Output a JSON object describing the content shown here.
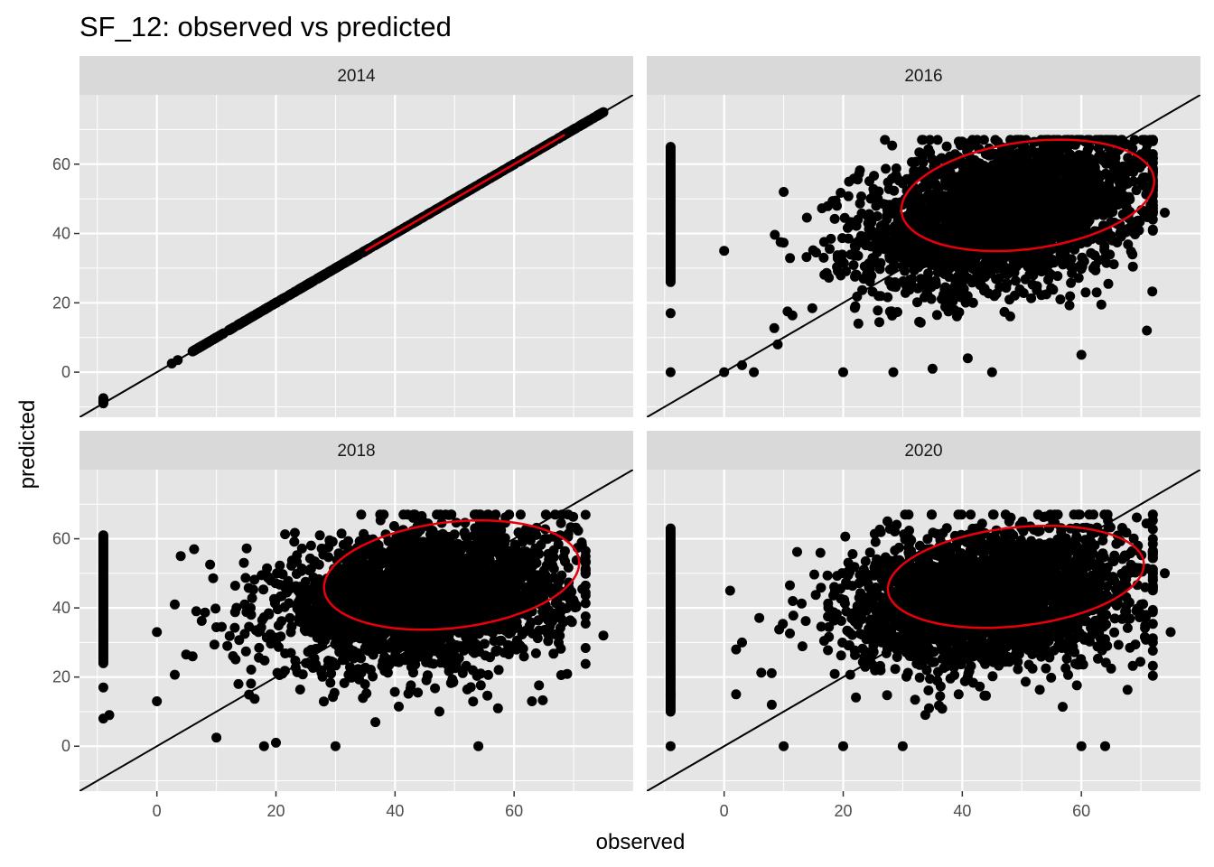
{
  "chart_data": {
    "type": "scatter",
    "title": "SF_12: observed vs predicted",
    "xlabel": "observed",
    "ylabel": "predicted",
    "xlim": [
      -13,
      80
    ],
    "ylim": [
      -13,
      80
    ],
    "x_ticks": [
      0,
      20,
      40,
      60
    ],
    "y_ticks": [
      0,
      20,
      40,
      60
    ],
    "x_tick_labels": [
      "0",
      "20",
      "40",
      "60"
    ],
    "y_tick_labels": [
      "0",
      "20",
      "40",
      "60"
    ],
    "grid": true,
    "reference_line": "identity (y = x)",
    "colors": {
      "panel_background": "#e5e5e5",
      "strip_background": "#d9d9d9",
      "grid": "#ffffff",
      "points": "#000000",
      "ellipse": "#e8000b",
      "reference_line": "#000000"
    },
    "facets": [
      {
        "label": "2014",
        "cloud": {
          "mx": 42,
          "my": 42,
          "sx": 14,
          "sy": 14,
          "rho": 1.0,
          "n": 700
        },
        "missing_column": {
          "x": -9,
          "ymin": -9,
          "ymax": -7.5
        },
        "ellipse": {
          "type": "segment",
          "x1": 35,
          "y1": 35,
          "x2": 68.5,
          "y2": 68.5
        },
        "extremes": [
          [
            2.5,
            2.5
          ],
          [
            3.5,
            3.5
          ],
          [
            6,
            6
          ],
          [
            74,
            74
          ],
          [
            75,
            75
          ]
        ]
      },
      {
        "label": "2016",
        "cloud": {
          "mx": 47,
          "my": 46,
          "sx": 12,
          "sy": 11,
          "rho": 0.32,
          "n": 2500
        },
        "missing_column": {
          "x": -9,
          "ymin": 26,
          "ymax": 65
        },
        "ellipse": {
          "type": "ellipse",
          "cx": 51,
          "cy": 51,
          "rx": 22,
          "ry": 15,
          "angle_deg": 21
        },
        "extremes": [
          [
            -9,
            17
          ],
          [
            -9,
            0
          ],
          [
            0,
            0
          ],
          [
            0,
            35
          ],
          [
            3,
            2
          ],
          [
            5,
            0
          ],
          [
            9,
            8
          ],
          [
            10,
            52
          ],
          [
            20,
            0
          ],
          [
            27,
            67
          ],
          [
            71,
            12
          ],
          [
            74,
            46
          ],
          [
            60,
            5
          ],
          [
            35,
            1
          ],
          [
            45,
            0
          ]
        ]
      },
      {
        "label": "2018",
        "cloud": {
          "mx": 45,
          "my": 43,
          "sx": 12,
          "sy": 10,
          "rho": 0.22,
          "n": 2500
        },
        "missing_column": {
          "x": -9,
          "ymin": 24,
          "ymax": 61
        },
        "ellipse": {
          "type": "ellipse",
          "cx": 49.5,
          "cy": 49.5,
          "rx": 22,
          "ry": 15,
          "angle_deg": 18
        },
        "extremes": [
          [
            -9,
            17
          ],
          [
            -9,
            8
          ],
          [
            -8,
            9
          ],
          [
            0,
            13
          ],
          [
            0,
            33
          ],
          [
            3,
            41
          ],
          [
            6,
            26
          ],
          [
            10,
            2.5
          ],
          [
            18,
            0
          ],
          [
            20,
            1
          ],
          [
            30,
            0
          ],
          [
            54,
            0
          ],
          [
            63,
            13
          ],
          [
            75,
            32
          ],
          [
            65,
            39
          ],
          [
            4,
            55
          ]
        ]
      },
      {
        "label": "2020",
        "cloud": {
          "mx": 45,
          "my": 43,
          "sx": 12,
          "sy": 10,
          "rho": 0.2,
          "n": 2500
        },
        "missing_column": {
          "x": -9,
          "ymin": 10,
          "ymax": 63
        },
        "ellipse": {
          "type": "ellipse",
          "cx": 49,
          "cy": 49,
          "rx": 22,
          "ry": 14,
          "angle_deg": 16
        },
        "extremes": [
          [
            -9,
            0
          ],
          [
            -9,
            15
          ],
          [
            1,
            45
          ],
          [
            2,
            28
          ],
          [
            2,
            15
          ],
          [
            3,
            30
          ],
          [
            8,
            12
          ],
          [
            10,
            0
          ],
          [
            20,
            0
          ],
          [
            75,
            33
          ],
          [
            74,
            50
          ],
          [
            72,
            30
          ],
          [
            30,
            0
          ],
          [
            60,
            0
          ],
          [
            64,
            0
          ]
        ]
      }
    ]
  }
}
